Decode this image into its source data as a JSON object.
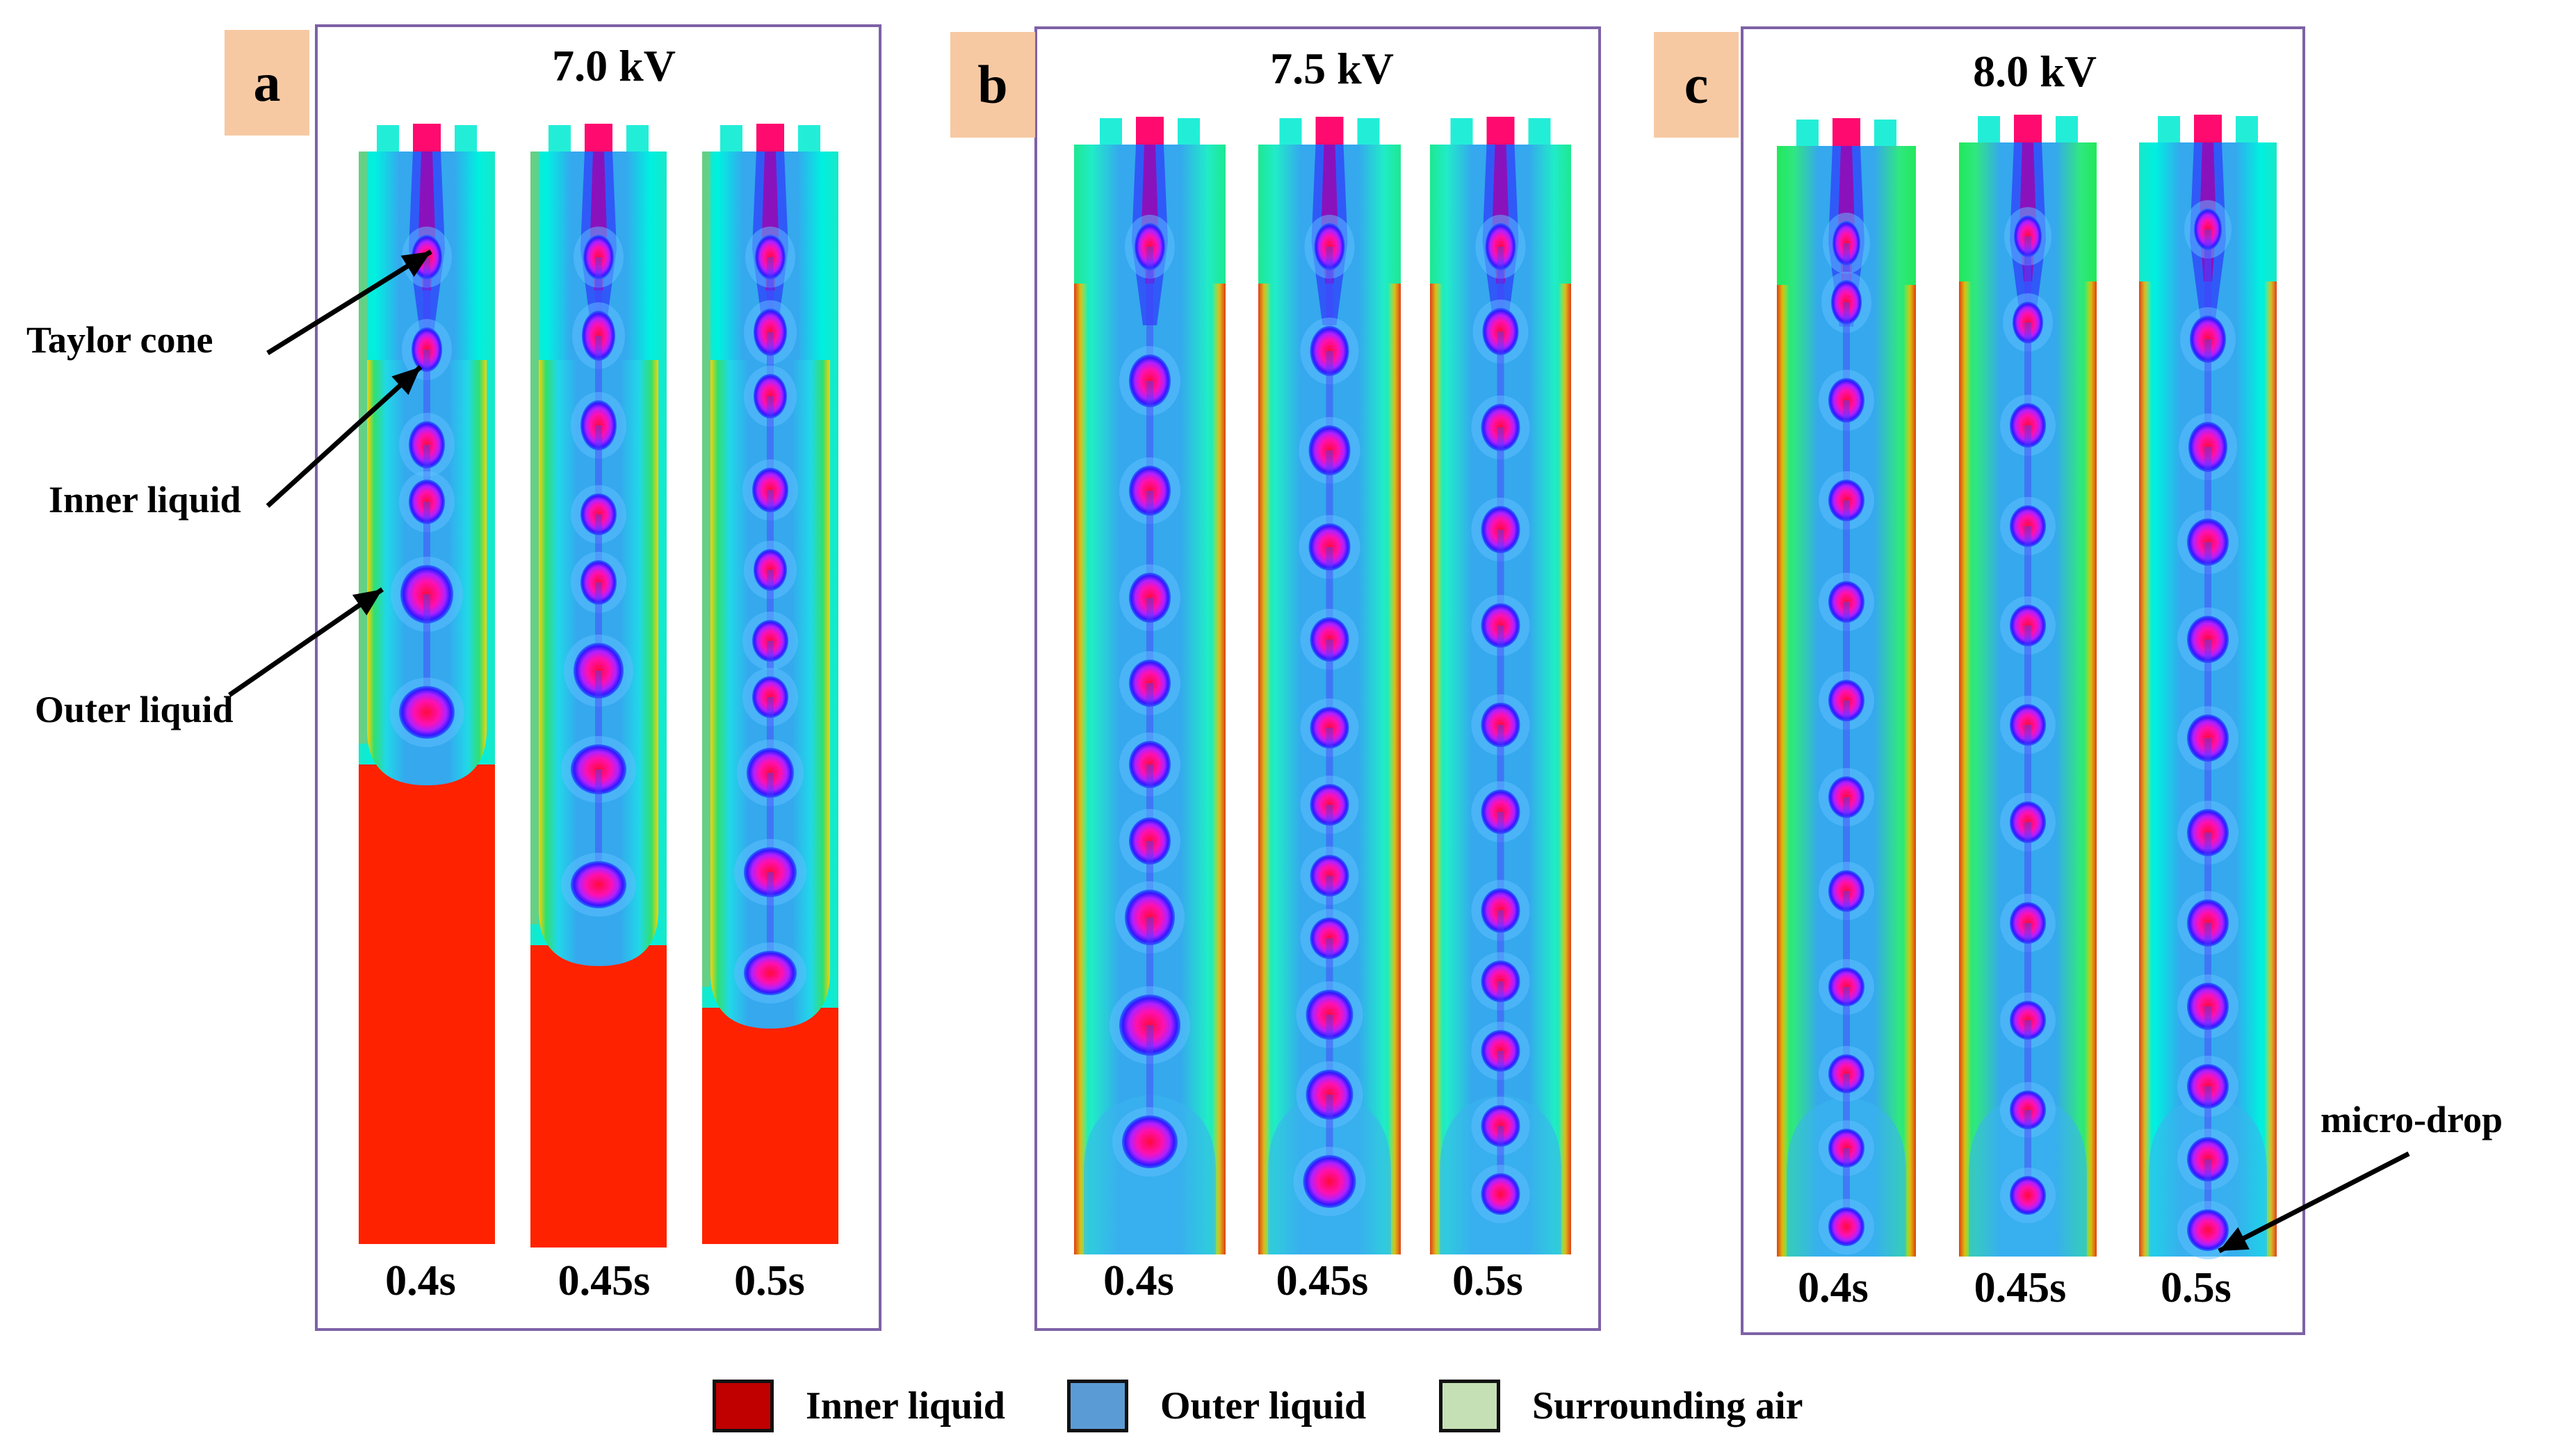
{
  "panels": [
    {
      "letter": "a",
      "voltage": "7.0 kV",
      "times": [
        "0.4s",
        "0.45s",
        "0.5s"
      ],
      "background": "cyan",
      "bottom": "red"
    },
    {
      "letter": "b",
      "voltage": "7.5 kV",
      "times": [
        "0.4s",
        "0.45s",
        "0.5s"
      ],
      "background": "green-cyan",
      "bottom": "thin-red"
    },
    {
      "letter": "c",
      "voltage": "8.0 kV",
      "times": [
        "0.4s",
        "0.45s",
        "0.5s"
      ],
      "background": "green",
      "bottom": "thin-red"
    }
  ],
  "annotations": {
    "taylor_cone": "Taylor cone",
    "inner_liquid": "Inner liquid",
    "outer_liquid": "Outer liquid",
    "micro_drop": "micro-drop"
  },
  "legend": [
    {
      "label": "Inner liquid",
      "color": "#c00000"
    },
    {
      "label": "Outer liquid",
      "color": "#5b9bd5"
    },
    {
      "label": "Surrounding air",
      "color": "#c5e0b4"
    }
  ],
  "colors": {
    "frame": "#7d62a6",
    "letter_bg": "#f7c9a3",
    "cyan": "#00f0e0",
    "green": "#22e85a",
    "blue": "#35a8ee",
    "red": "#ff2200",
    "core": "#ff0a6e",
    "ring": "#2a1aff"
  }
}
